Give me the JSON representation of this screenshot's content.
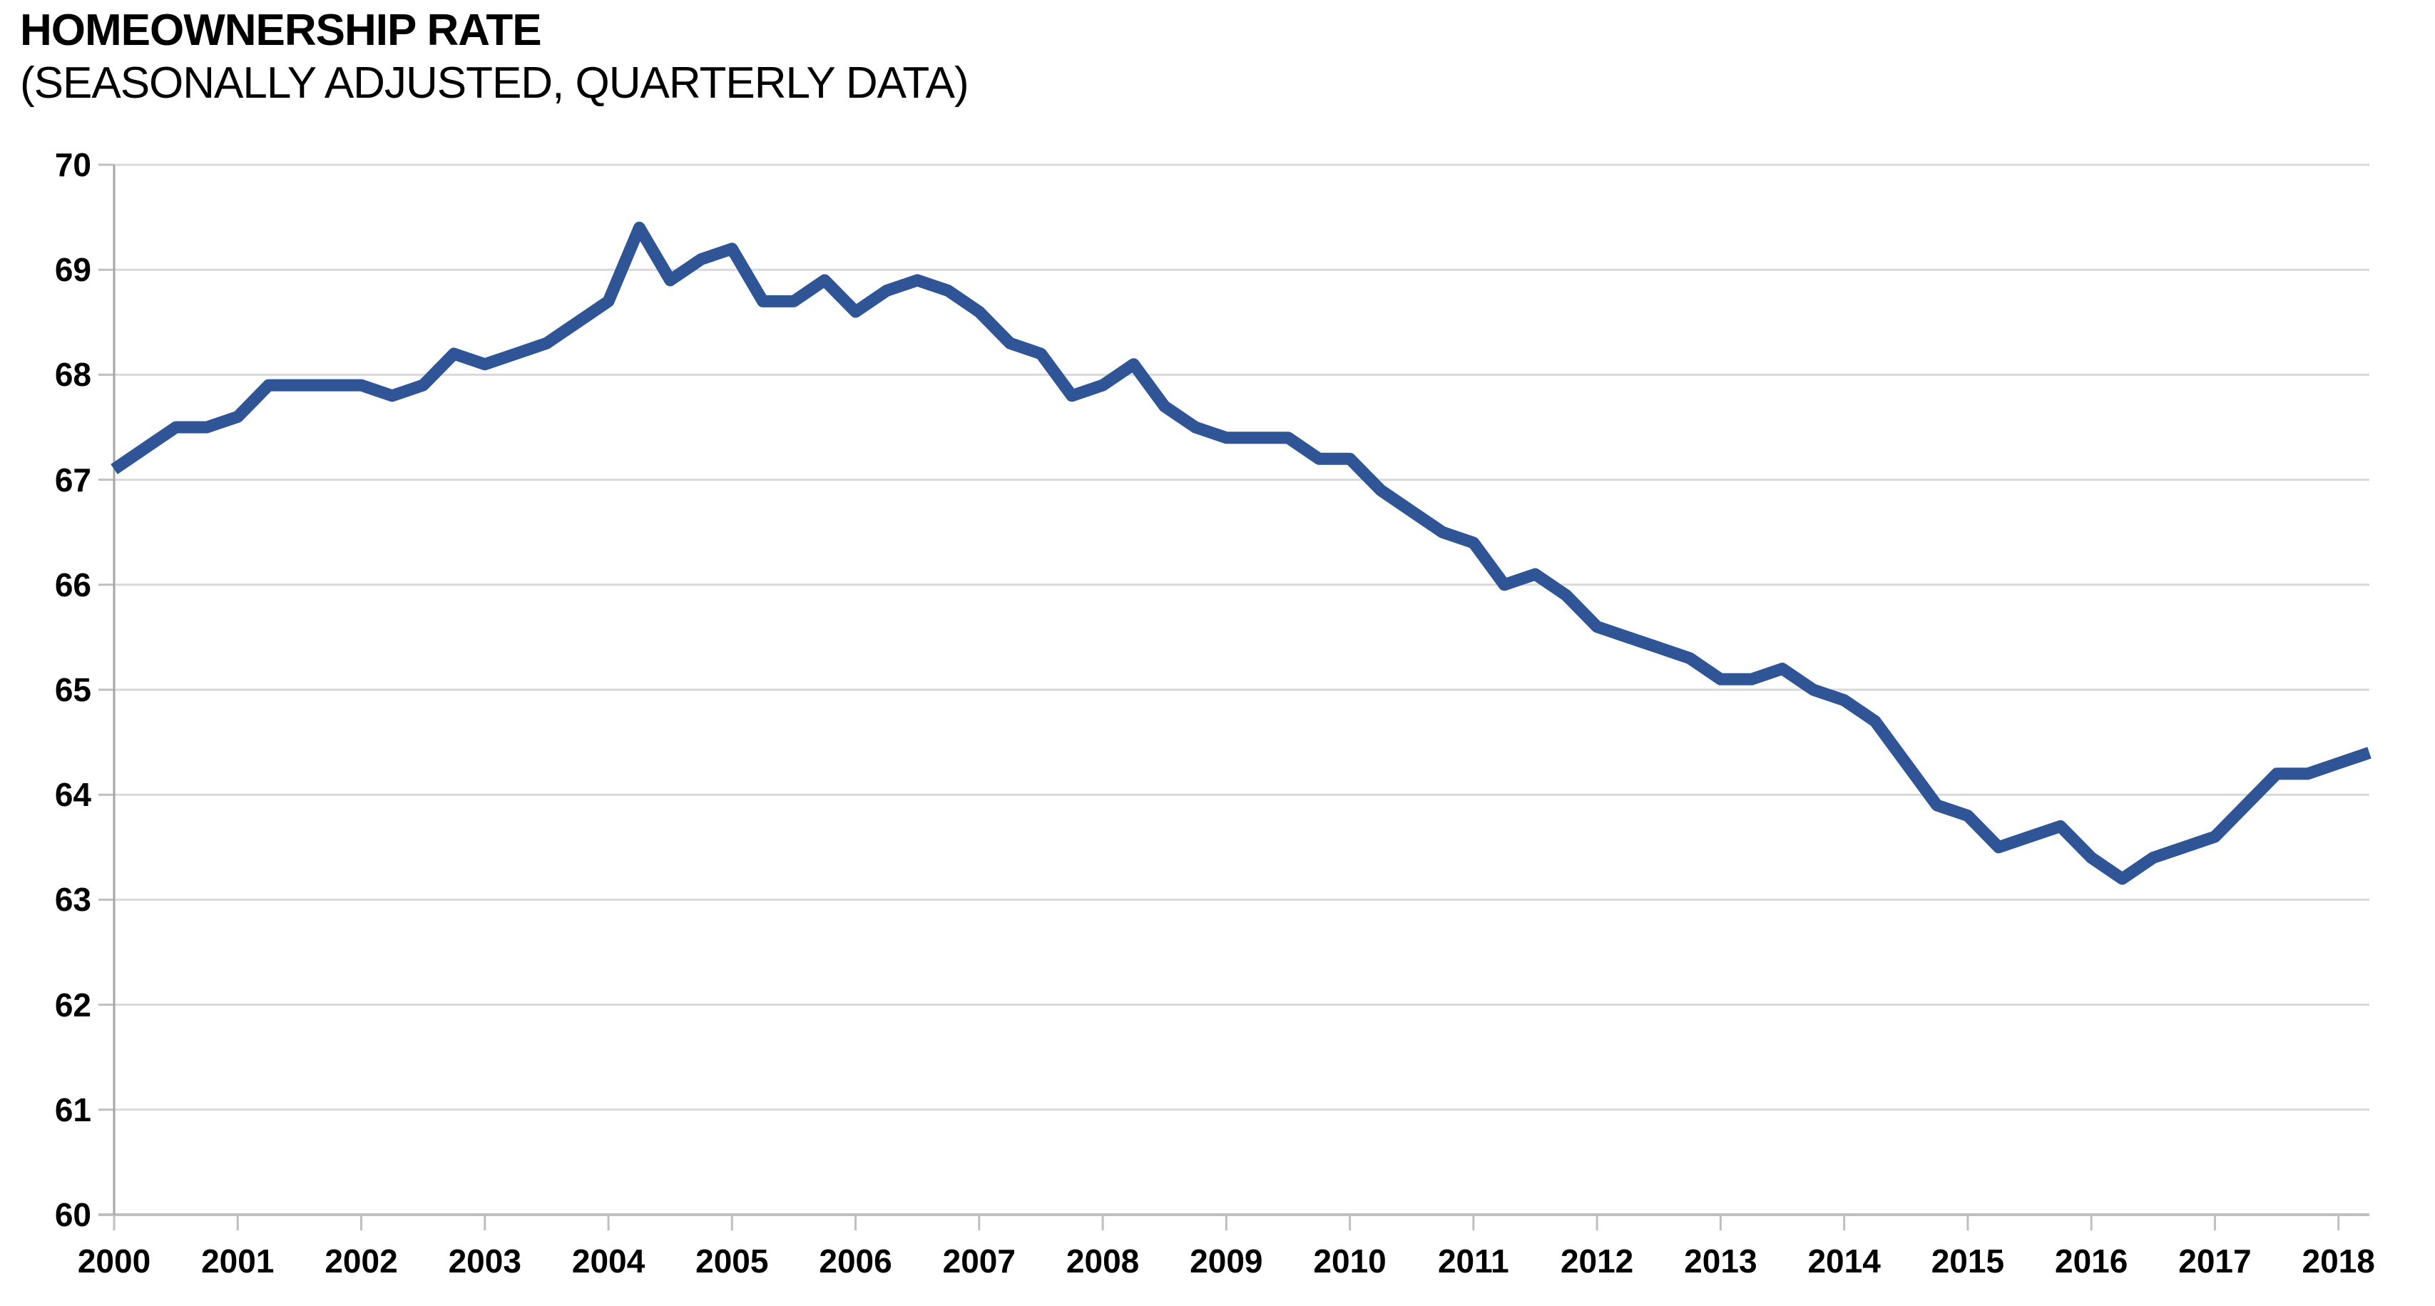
{
  "title": "HOMEOWNERSHIP RATE",
  "subtitle": "(SEASONALLY ADJUSTED, QUARTERLY DATA)",
  "chart_data": {
    "type": "line",
    "title": "HOMEOWNERSHIP RATE",
    "subtitle": "(SEASONALLY ADJUSTED, QUARTERLY DATA)",
    "frequency": "quarterly",
    "x_start": "2000 Q1",
    "x_end": "2018 Q2",
    "x_tick_labels": [
      "2000",
      "2001",
      "2002",
      "2003",
      "2004",
      "2005",
      "2006",
      "2007",
      "2008",
      "2009",
      "2010",
      "2011",
      "2012",
      "2013",
      "2014",
      "2015",
      "2016",
      "2017",
      "2018"
    ],
    "y_ticks": [
      60,
      61,
      62,
      63,
      64,
      65,
      66,
      67,
      68,
      69,
      70
    ],
    "ylim": [
      60,
      70
    ],
    "grid": true,
    "legend_position": "none",
    "line_color": "#2F5597",
    "grid_color": "#D9D9D9",
    "axis_color": "#BFBFBF",
    "y_axis_line_color": "#A6A6A6",
    "series": [
      {
        "name": "Homeownership rate (%)",
        "values": [
          67.1,
          67.3,
          67.5,
          67.5,
          67.6,
          67.9,
          67.9,
          67.9,
          67.9,
          67.8,
          67.9,
          68.2,
          68.1,
          68.2,
          68.3,
          68.5,
          68.7,
          69.4,
          68.9,
          69.1,
          69.2,
          68.7,
          68.7,
          68.9,
          68.6,
          68.8,
          68.9,
          68.8,
          68.6,
          68.3,
          68.2,
          67.8,
          67.9,
          68.1,
          67.7,
          67.5,
          67.4,
          67.4,
          67.4,
          67.2,
          67.2,
          66.9,
          66.7,
          66.5,
          66.4,
          66.0,
          66.1,
          65.9,
          65.6,
          65.5,
          65.4,
          65.3,
          65.1,
          65.1,
          65.2,
          65.0,
          64.9,
          64.7,
          64.3,
          63.9,
          63.8,
          63.5,
          63.6,
          63.7,
          63.4,
          63.2,
          63.4,
          63.5,
          63.6,
          63.9,
          64.2,
          64.2,
          64.3,
          64.4
        ]
      }
    ]
  }
}
